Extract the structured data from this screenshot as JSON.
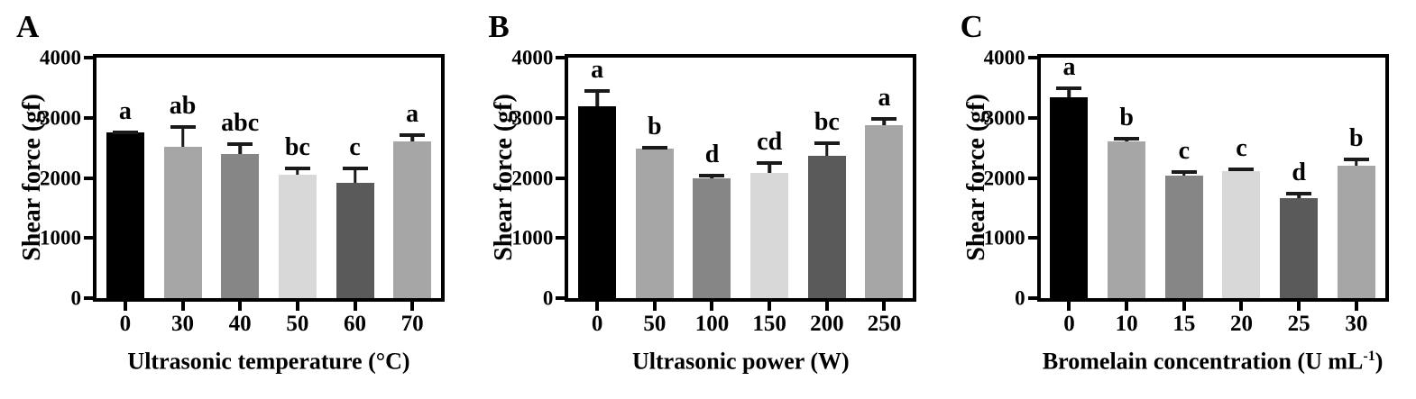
{
  "figure": {
    "background": "#ffffff",
    "axis_color": "#000000",
    "error_bar_color": "#1a1a1a"
  },
  "chart_data": [
    {
      "type": "bar",
      "panel_label": "A",
      "title": "",
      "xlabel": "Ultrasonic temperature (°C)",
      "xlabel_sup": "",
      "xlabel_suffix": "",
      "ylabel": "Shear force (gf)",
      "categories": [
        "0",
        "30",
        "40",
        "50",
        "60",
        "70"
      ],
      "values": [
        2750,
        2510,
        2400,
        2050,
        1920,
        2600
      ],
      "errors": [
        30,
        360,
        195,
        135,
        270,
        140
      ],
      "sig_letters": [
        "a",
        "ab",
        "abc",
        "bc",
        "c",
        "a"
      ],
      "bar_colors": [
        "#000000",
        "#a6a6a6",
        "#868686",
        "#d8d8d8",
        "#5a5a5a",
        "#a6a6a6"
      ],
      "ylim": [
        0,
        4000
      ],
      "yticks": [
        0,
        1000,
        2000,
        3000,
        4000
      ],
      "grid": "off",
      "legend": "none"
    },
    {
      "type": "bar",
      "panel_label": "B",
      "title": "",
      "xlabel": "Ultrasonic power (W)",
      "xlabel_sup": "",
      "xlabel_suffix": "",
      "ylabel": "Shear force (gf)",
      "categories": [
        "0",
        "50",
        "100",
        "150",
        "200",
        "250"
      ],
      "values": [
        3190,
        2480,
        2000,
        2090,
        2360,
        2880
      ],
      "errors": [
        280,
        50,
        65,
        180,
        250,
        135
      ],
      "sig_letters": [
        "a",
        "b",
        "d",
        "cd",
        "bc",
        "a"
      ],
      "bar_colors": [
        "#000000",
        "#a6a6a6",
        "#868686",
        "#d8d8d8",
        "#5a5a5a",
        "#a6a6a6"
      ],
      "ylim": [
        0,
        4000
      ],
      "yticks": [
        0,
        1000,
        2000,
        3000,
        4000
      ],
      "grid": "off",
      "legend": "none"
    },
    {
      "type": "bar",
      "panel_label": "C",
      "title": "",
      "xlabel": "Bromelain concentration (U mL",
      "xlabel_sup": "-1",
      "xlabel_suffix": ")",
      "ylabel": "Shear force (gf)",
      "categories": [
        "0",
        "10",
        "15",
        "20",
        "25",
        "30"
      ],
      "values": [
        3340,
        2610,
        2040,
        2120,
        1660,
        2200
      ],
      "errors": [
        175,
        75,
        90,
        50,
        110,
        135
      ],
      "sig_letters": [
        "a",
        "b",
        "c",
        "c",
        "d",
        "b"
      ],
      "bar_colors": [
        "#000000",
        "#a6a6a6",
        "#868686",
        "#d8d8d8",
        "#5a5a5a",
        "#a6a6a6"
      ],
      "ylim": [
        0,
        4000
      ],
      "yticks": [
        0,
        1000,
        2000,
        3000,
        4000
      ],
      "grid": "off",
      "legend": "none"
    }
  ]
}
